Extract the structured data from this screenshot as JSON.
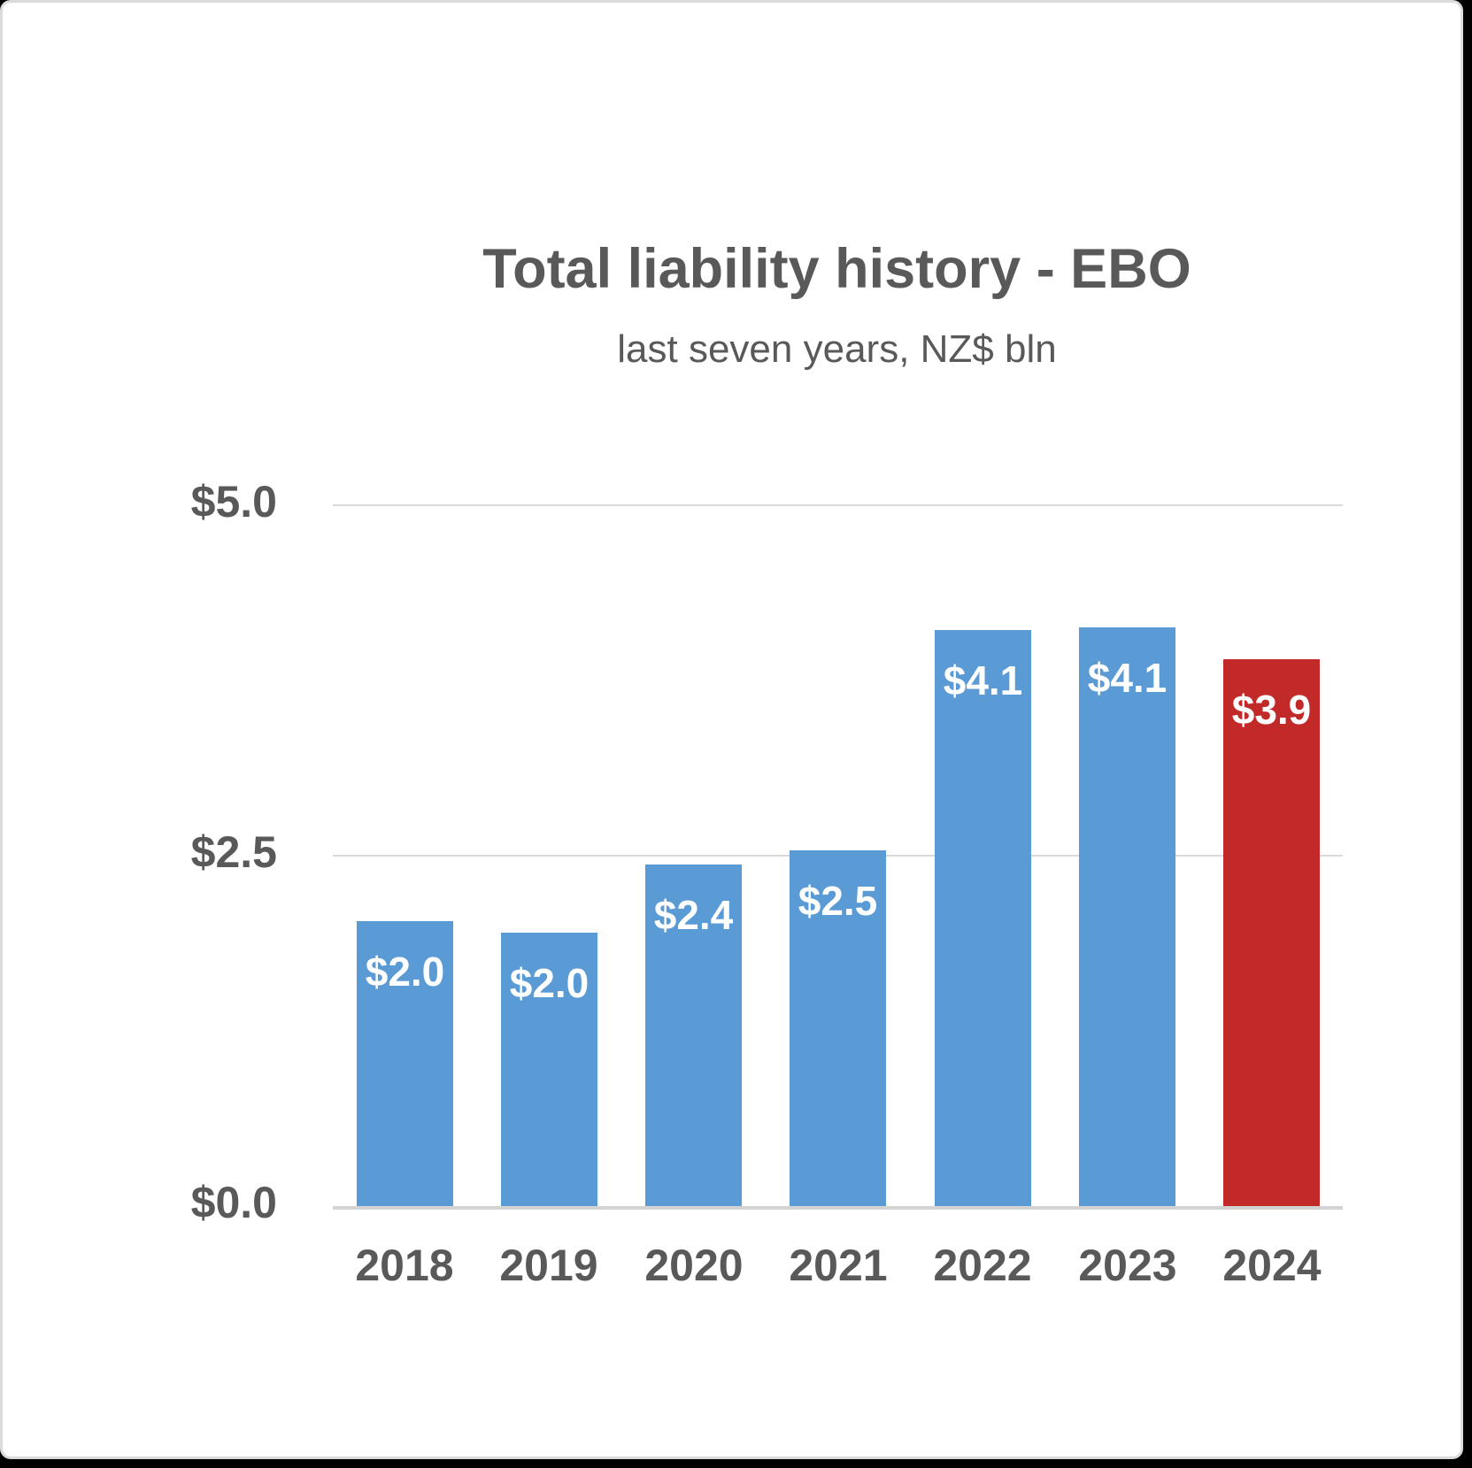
{
  "frame": {
    "card_background": "#FFFFFF",
    "card_border": "#DBDBDB",
    "outer_background": "#000000"
  },
  "chart_data": {
    "type": "bar",
    "title": "Total liability history - EBO",
    "subtitle": "last seven years, NZ$ bln",
    "categories": [
      "2018",
      "2019",
      "2020",
      "2021",
      "2022",
      "2023",
      "2024"
    ],
    "values": [
      2.0,
      2.0,
      2.4,
      2.5,
      4.1,
      4.1,
      3.9
    ],
    "values_precise": [
      2.03,
      1.95,
      2.44,
      2.54,
      4.11,
      4.13,
      3.9
    ],
    "bar_labels": [
      "$2.0",
      "$2.0",
      "$2.4",
      "$2.5",
      "$4.1",
      "$4.1",
      "$3.9"
    ],
    "y_ticks": [
      {
        "label": "$5.0",
        "value": 5.0
      },
      {
        "label": "$2.5",
        "value": 2.5
      },
      {
        "label": "$0.0",
        "value": 0.0
      }
    ],
    "ylim": [
      0,
      5.0
    ],
    "grid": true,
    "legend": false,
    "colors": {
      "bar_default": "#5B9BD5",
      "bar_highlight": "#C12A28",
      "highlight_index": 6,
      "text": "#595959",
      "bar_label_text": "#FFFFFF",
      "gridline": "#D9D9D9",
      "baseline": "#D3D3D3"
    }
  }
}
